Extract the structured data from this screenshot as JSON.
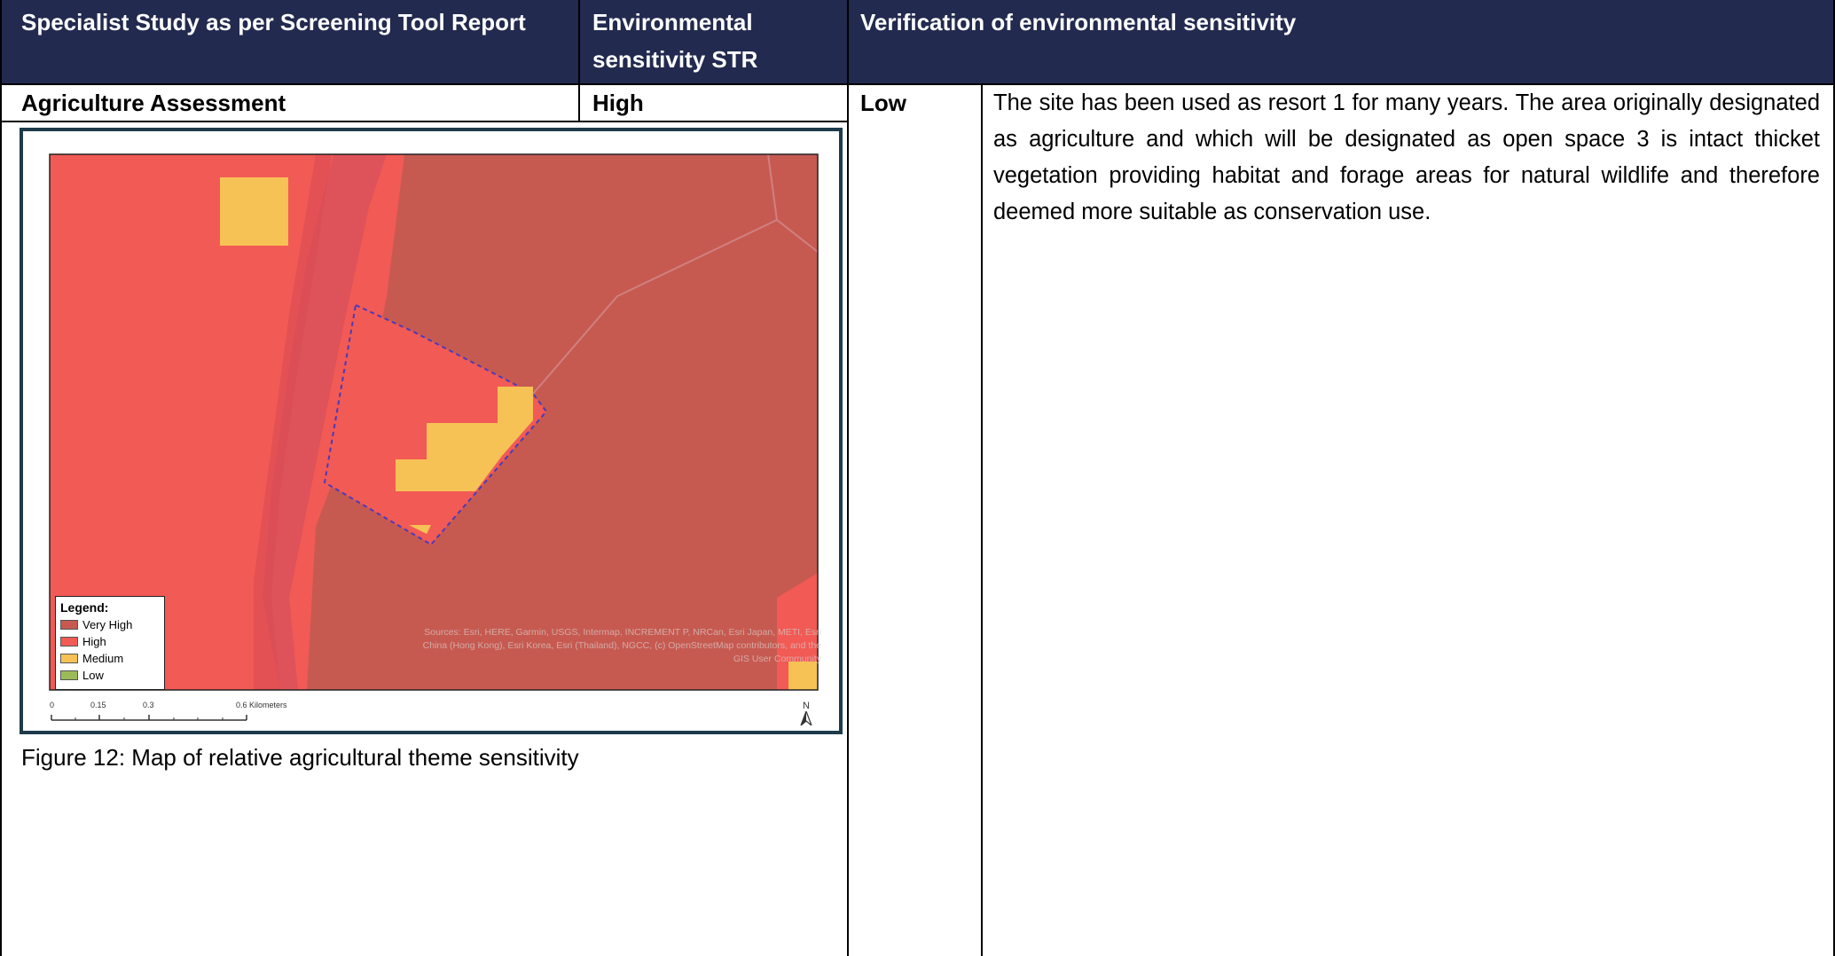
{
  "header": {
    "col1": "Specialist Study as per Screening Tool Report",
    "col2_line1": "Environmental",
    "col2_line2": "sensitivity STR",
    "col3": "Verification of environmental sensitivity"
  },
  "row": {
    "study": "Agriculture Assessment",
    "str_sensitivity": "High",
    "verified_sensitivity": "Low",
    "verification_text": "The site has been used as resort 1 for many years. The area originally designated as agriculture and which will be designated as open space 3 is intact thicket vegetation providing habitat and forage areas for natural wildlife and therefore deemed more suitable as conservation use."
  },
  "figure": {
    "caption": "Figure 12: Map of relative agricultural theme sensitivity",
    "legend": {
      "title": "Legend:",
      "items": [
        {
          "label": "Very High",
          "color": "#c0504d"
        },
        {
          "label": "High",
          "color": "#f25a55"
        },
        {
          "label": "Medium",
          "color": "#f6c255"
        },
        {
          "label": "Low",
          "color": "#9bbb59"
        }
      ]
    },
    "attribution": "Sources: Esri, HERE, Garmin, USGS, Intermap, INCREMENT P, NRCan, Esri Japan, METI, Esri China (Hong Kong), Esri Korea, Esri (Thailand), NGCC, (c) OpenStreetMap contributors, and the GIS User Community",
    "scale_ticks": [
      "0",
      "0.15",
      "0.3",
      "0.6 Kilometers"
    ],
    "north_label": "N"
  },
  "colors": {
    "header_bg": "#232a4f",
    "very_high": "#c65a51",
    "high": "#f25a55",
    "medium": "#f6c255"
  }
}
